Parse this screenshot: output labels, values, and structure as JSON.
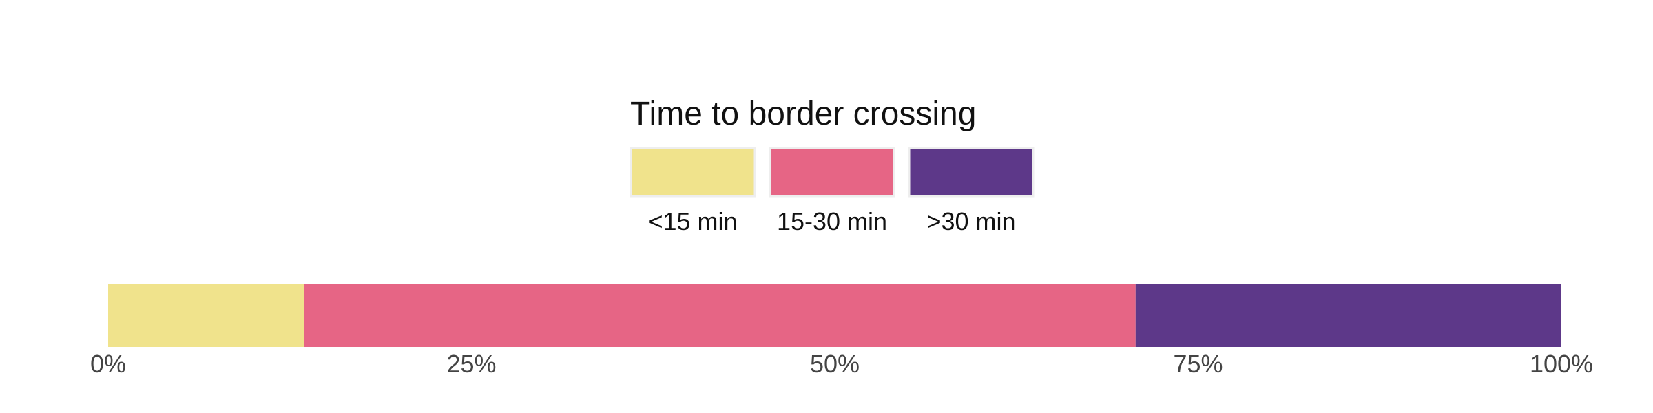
{
  "chart_data": {
    "type": "bar",
    "orientation": "horizontal",
    "stacked": true,
    "normalized_percent": true,
    "legend": {
      "title": "Time to border crossing",
      "placement": "top-center",
      "entries": [
        "<15 min",
        "15-30 min",
        ">30 min"
      ]
    },
    "series": [
      {
        "name": "<15 min",
        "value": 13.5,
        "color": "#f0e38c"
      },
      {
        "name": "15-30 min",
        "value": 57.2,
        "color": "#e66585"
      },
      {
        "name": ">30 min",
        "value": 29.3,
        "color": "#5d3889"
      }
    ],
    "x_ticks": [
      {
        "value": 0,
        "label": "0%"
      },
      {
        "value": 25,
        "label": "25%"
      },
      {
        "value": 50,
        "label": "50%"
      },
      {
        "value": 75,
        "label": "75%"
      },
      {
        "value": 100,
        "label": "100%"
      }
    ],
    "xlim": [
      0,
      100
    ],
    "grid": false
  }
}
